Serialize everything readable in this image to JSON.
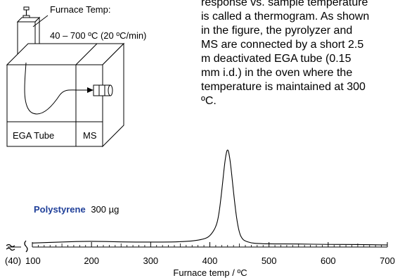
{
  "paragraph": {
    "lines": [
      "response vs. sample temperature",
      "is called a thermogram. As shown",
      "in the figure, the pyrolyzer and",
      "MS are connected by a short 2.5",
      "m deactivated EGA tube (0.15",
      "mm i.d.) in the oven where the",
      "temperature is maintained at 300",
      "ºC."
    ]
  },
  "apparatus": {
    "furnace_label": "Furnace Temp:",
    "furnace_range": "40 – 700 ºC (20 ºC/min)",
    "tube_label": "EGA Tube",
    "ms_label": "MS"
  },
  "chart_data": {
    "type": "line",
    "sample_name": "Polystyrene",
    "sample_amount": "300 µg",
    "xlabel": "Furnace temp / ºC",
    "xlim": [
      100,
      700
    ],
    "x_break_label": "(40)",
    "x_ticks": [
      100,
      200,
      300,
      400,
      500,
      600,
      700
    ],
    "tick_labels": [
      "100",
      "200",
      "300",
      "400",
      "500",
      "600",
      "700"
    ],
    "peak_x": 430,
    "series": [
      {
        "x": [
          100,
          150,
          200,
          250,
          300,
          340,
          370,
          390,
          400,
          410,
          415,
          420,
          425,
          428,
          430,
          432,
          435,
          440,
          445,
          450,
          455,
          460,
          470,
          480,
          500,
          550,
          600,
          650,
          700
        ],
        "y": [
          0.02,
          0.03,
          0.04,
          0.03,
          0.03,
          0.03,
          0.04,
          0.06,
          0.09,
          0.18,
          0.3,
          0.55,
          0.85,
          0.97,
          1.0,
          0.97,
          0.85,
          0.55,
          0.28,
          0.12,
          0.06,
          0.04,
          0.02,
          0.015,
          0.01,
          0.01,
          0.005,
          0.005,
          0.0
        ]
      }
    ]
  }
}
